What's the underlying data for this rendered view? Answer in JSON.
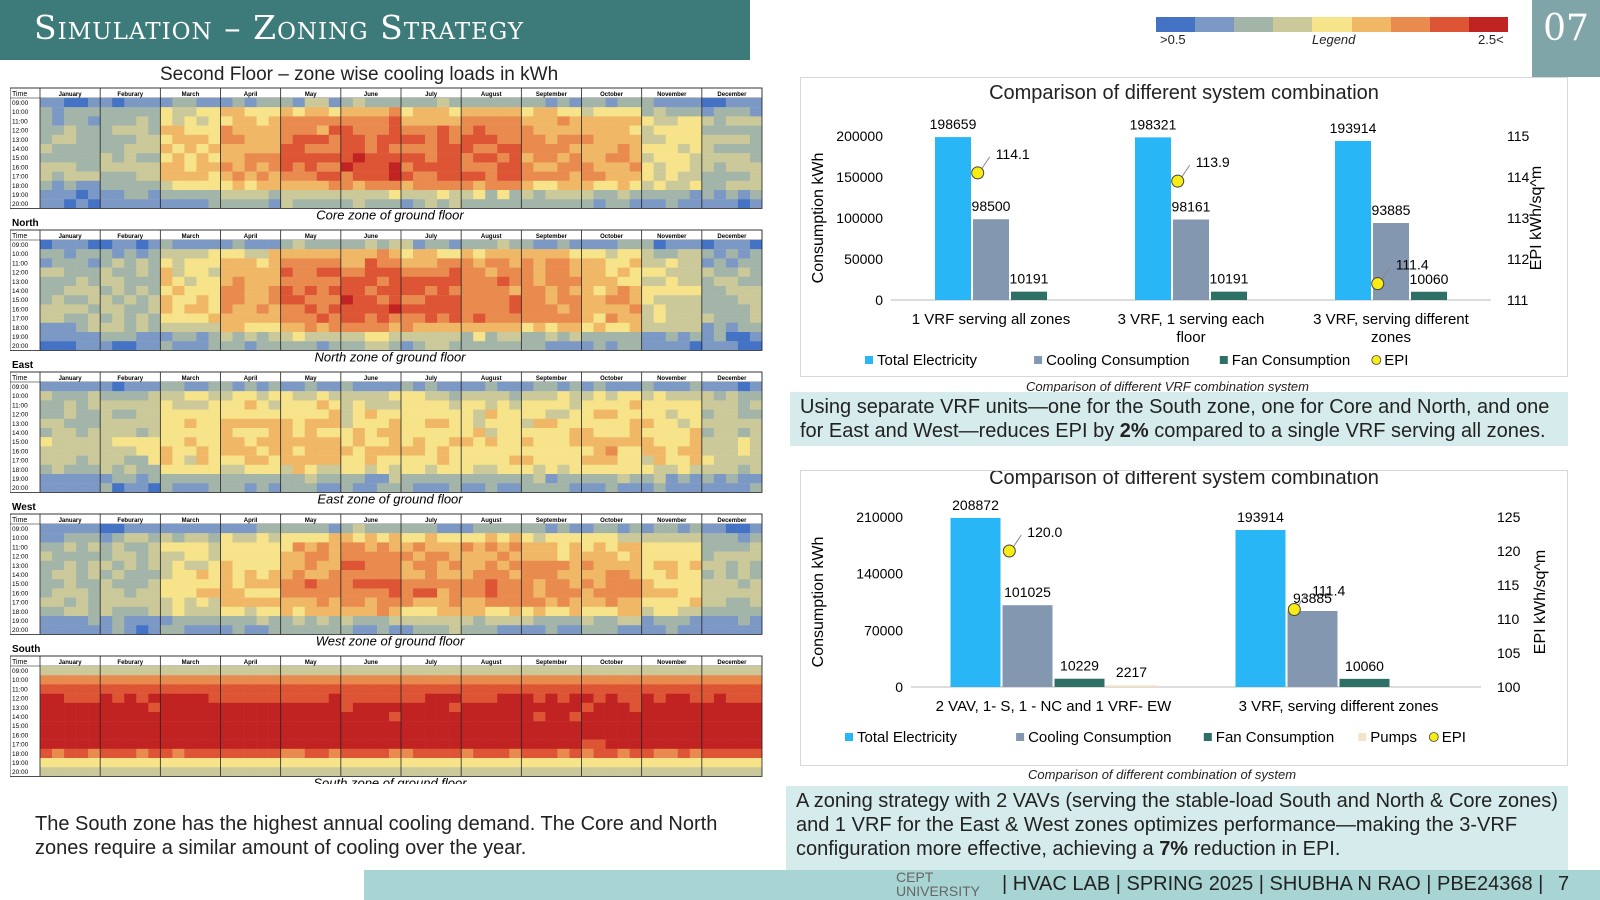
{
  "header": {
    "title": "Simulation – Zoning Strategy",
    "slide_number": "07"
  },
  "legend": {
    "title": "Legend",
    "min_label": ">0.5",
    "max_label": "2.5<",
    "colors": [
      "#4472c4",
      "#7c98c5",
      "#a3b4a8",
      "#cbc99a",
      "#f6e38a",
      "#f0b766",
      "#e98a4f",
      "#dd5535",
      "#c12222"
    ]
  },
  "heatmaps": {
    "title": "Second Floor – zone wise cooling loads in kWh",
    "time_header": "Time",
    "months": [
      "January",
      "Feburary",
      "March",
      "April",
      "May",
      "June",
      "July",
      "August",
      "September",
      "October",
      "November",
      "December"
    ],
    "hours": [
      "09:00",
      "10:00",
      "11:00",
      "12:00",
      "13:00",
      "14:00",
      "15:00",
      "16:00",
      "17:00",
      "18:00",
      "19:00",
      "20:00"
    ],
    "panels": [
      {
        "zone": "Core",
        "caption": "Core zone of ground floor"
      },
      {
        "zone": "North",
        "caption": "North zone of ground floor"
      },
      {
        "zone": "East",
        "caption": "East zone of ground floor"
      },
      {
        "zone": "West",
        "caption": "West zone of ground floor"
      },
      {
        "zone": "South",
        "caption": "South zone of ground floor"
      }
    ]
  },
  "bottom_left_text": "The South zone has the highest annual cooling demand. The Core and North zones require a similar amount of cooling over the year.",
  "chart_data": [
    {
      "type": "bar",
      "title": "Comparison of different system combination",
      "caption": "Comparison of different VRF combination system",
      "ylabel": "Consumption kWh",
      "y2label": "EPI kWh/sq^m",
      "ylim": [
        0,
        200000
      ],
      "yticks": [
        "0",
        "50000",
        "100000",
        "150000",
        "200000"
      ],
      "y2lim": [
        111,
        115
      ],
      "y2ticks": [
        "111",
        "112",
        "113",
        "114",
        "115"
      ],
      "categories": [
        "1 VRF serving all zones",
        "3 VRF, 1 serving each floor",
        "3 VRF, serving different zones"
      ],
      "series": [
        {
          "name": "Total Electricity",
          "color": "#29b6f6",
          "values": [
            198659,
            198321,
            193914
          ],
          "labels": [
            "198659",
            "198321",
            "193914"
          ]
        },
        {
          "name": "Cooling Consumption",
          "color": "#8497b0",
          "values": [
            98500,
            98161,
            93885
          ],
          "labels": [
            "98500",
            "98161",
            "93885"
          ]
        },
        {
          "name": "Fan Consumption",
          "color": "#2e7065",
          "values": [
            10191,
            10191,
            10060
          ],
          "labels": [
            "10191",
            "10191",
            "10060"
          ]
        }
      ],
      "epi": {
        "name": "EPI",
        "color": "#f7ec13",
        "values": [
          114.1,
          113.9,
          111.4
        ],
        "labels": [
          "114.1",
          "113.9",
          "111.4"
        ]
      }
    },
    {
      "type": "bar",
      "title": "Comparison of different system combination",
      "caption": "Comparison of different combination of system",
      "ylabel": "Consumption kWh",
      "y2label": "EPI kWh/sq^m",
      "ylim": [
        0,
        210000
      ],
      "yticks": [
        "0",
        "70000",
        "140000",
        "210000"
      ],
      "y2lim": [
        100,
        125
      ],
      "y2ticks": [
        "100",
        "105",
        "110",
        "115",
        "120",
        "125"
      ],
      "categories": [
        "2 VAV, 1- S, 1 - NC and 1 VRF- EW",
        "3 VRF, serving different zones"
      ],
      "series": [
        {
          "name": "Total Electricity",
          "color": "#29b6f6",
          "values": [
            208872,
            193914
          ],
          "labels": [
            "208872",
            "193914"
          ]
        },
        {
          "name": "Cooling Consumption",
          "color": "#8497b0",
          "values": [
            101025,
            93885
          ],
          "labels": [
            "101025",
            "93885"
          ]
        },
        {
          "name": "Fan Consumption",
          "color": "#2e7065",
          "values": [
            10229,
            10060
          ],
          "labels": [
            "10229",
            "10060"
          ]
        },
        {
          "name": "Pumps",
          "color": "#f3e3c8",
          "values": [
            2217,
            0
          ],
          "labels": [
            "2217",
            ""
          ]
        }
      ],
      "epi": {
        "name": "EPI",
        "color": "#f7ec13",
        "values": [
          120.0,
          111.4
        ],
        "labels": [
          "120.0",
          "111.4"
        ]
      }
    }
  ],
  "note1": {
    "pre": "Using separate VRF units—one for the South zone, one for Core and North, and one for East and West—reduces EPI by ",
    "bold": "2%",
    "post": " compared to a single VRF serving all zones."
  },
  "note2": {
    "pre": "A zoning strategy with 2 VAVs (serving the stable-load South and North & Core zones) and 1 VRF for the East & West zones optimizes performance—making the 3-VRF configuration more effective, achieving a ",
    "bold": "7%",
    "post": " reduction in EPI."
  },
  "footer": {
    "logo_top": "CEPT",
    "logo_bottom": "UNIVERSITY",
    "text": "| HVAC LAB | SPRING 2025 | SHUBHA N RAO | PBE24368 |",
    "page": "7"
  }
}
